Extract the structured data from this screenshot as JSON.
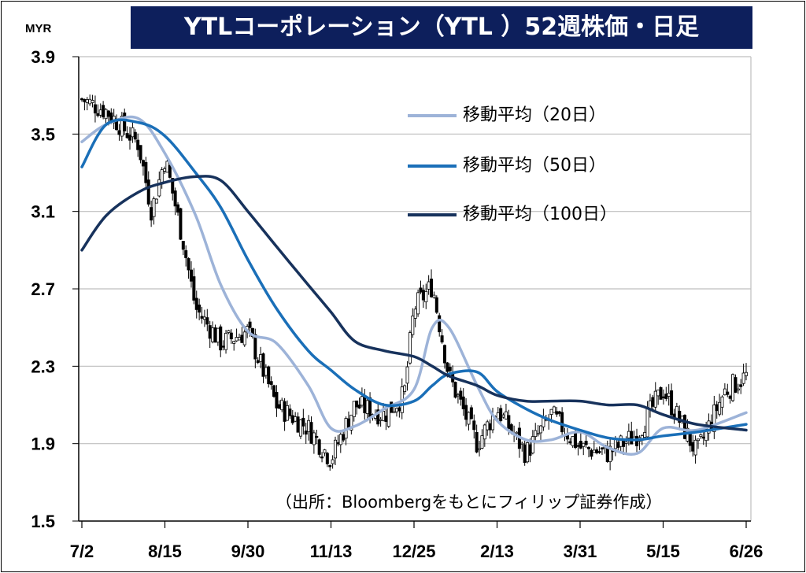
{
  "title": "YTLコーポレーション（YTL ）52週株価・日足",
  "unit": "MYR",
  "source_note": "（出所：Bloombergをもとにフィリップ証券作成）",
  "colors": {
    "title_bg": "#0d1f5c",
    "candle": "#000000",
    "ma20": "#9db3d8",
    "ma50": "#1a6fb8",
    "ma100": "#17325c",
    "grid": "#bfbfbf"
  },
  "chart_data": {
    "type": "candlestick",
    "title": "YTLコーポレーション（YTL ）52週株価・日足",
    "ylabel": "MYR",
    "ylim": [
      1.5,
      3.9
    ],
    "yticks": [
      "3.9",
      "3.5",
      "3.1",
      "2.7",
      "2.3",
      "1.9",
      "1.5"
    ],
    "xticks": [
      "7/2",
      "8/15",
      "9/30",
      "11/13",
      "12/25",
      "2/13",
      "3/31",
      "5/15",
      "6/26"
    ],
    "grid": true,
    "legend_position": "top-right",
    "legend": [
      "移動平均（20日）",
      "移動平均（50日）",
      "移動平均（100日）"
    ],
    "series": [
      {
        "name": "移動平均（20日）",
        "x": [
          "7/2",
          "7/15",
          "8/1",
          "8/15",
          "9/1",
          "9/15",
          "9/30",
          "10/15",
          "11/1",
          "11/13",
          "11/25",
          "12/10",
          "12/25",
          "1/5",
          "1/15",
          "2/1",
          "2/13",
          "3/1",
          "3/15",
          "3/31",
          "4/15",
          "5/1",
          "5/15",
          "6/1",
          "6/26"
        ],
        "values": [
          3.46,
          3.55,
          3.58,
          3.4,
          3.08,
          2.72,
          2.48,
          2.42,
          2.2,
          1.98,
          1.99,
          2.08,
          2.18,
          2.5,
          2.5,
          2.2,
          2.02,
          1.92,
          1.92,
          1.96,
          1.88,
          1.85,
          1.98,
          1.97,
          2.06
        ]
      },
      {
        "name": "移動平均（50日）",
        "x": [
          "7/2",
          "7/15",
          "8/1",
          "8/15",
          "9/1",
          "9/15",
          "9/30",
          "10/15",
          "11/1",
          "11/13",
          "11/25",
          "12/10",
          "12/25",
          "1/5",
          "1/15",
          "2/1",
          "2/13",
          "3/1",
          "3/15",
          "3/31",
          "4/15",
          "5/1",
          "5/15",
          "6/1",
          "6/26"
        ],
        "values": [
          3.33,
          3.55,
          3.56,
          3.49,
          3.3,
          3.12,
          2.85,
          2.6,
          2.38,
          2.28,
          2.18,
          2.1,
          2.12,
          2.2,
          2.26,
          2.27,
          2.17,
          2.08,
          2.02,
          1.97,
          1.93,
          1.92,
          1.94,
          1.96,
          2.0
        ]
      },
      {
        "name": "移動平均（100日）",
        "x": [
          "7/2",
          "7/15",
          "8/1",
          "8/15",
          "9/1",
          "9/15",
          "9/30",
          "10/15",
          "11/1",
          "11/13",
          "11/25",
          "12/10",
          "12/25",
          "1/5",
          "1/15",
          "2/1",
          "2/13",
          "3/1",
          "3/15",
          "3/31",
          "4/15",
          "5/1",
          "5/15",
          "6/1",
          "6/26"
        ],
        "values": [
          2.9,
          3.08,
          3.2,
          3.25,
          3.28,
          3.26,
          3.1,
          2.92,
          2.72,
          2.58,
          2.43,
          2.38,
          2.35,
          2.3,
          2.25,
          2.2,
          2.15,
          2.12,
          2.12,
          2.12,
          2.1,
          2.1,
          2.05,
          2.0,
          1.97
        ]
      }
    ],
    "price_path": {
      "x": [
        "7/2",
        "7/15",
        "8/1",
        "8/8",
        "8/15",
        "8/25",
        "9/1",
        "9/15",
        "9/30",
        "10/15",
        "11/1",
        "11/13",
        "11/25",
        "12/10",
        "12/20",
        "12/25",
        "1/5",
        "1/15",
        "2/1",
        "2/13",
        "3/1",
        "3/15",
        "3/31",
        "4/15",
        "5/1",
        "5/15",
        "6/1",
        "6/15",
        "6/26"
      ],
      "close": [
        3.68,
        3.62,
        3.45,
        3.1,
        3.38,
        2.95,
        2.6,
        2.42,
        2.48,
        2.1,
        1.98,
        1.82,
        2.1,
        2.05,
        2.15,
        2.6,
        2.72,
        2.25,
        1.9,
        2.08,
        1.85,
        2.05,
        1.88,
        1.85,
        1.95,
        2.18,
        1.85,
        2.17,
        2.25
      ]
    }
  }
}
